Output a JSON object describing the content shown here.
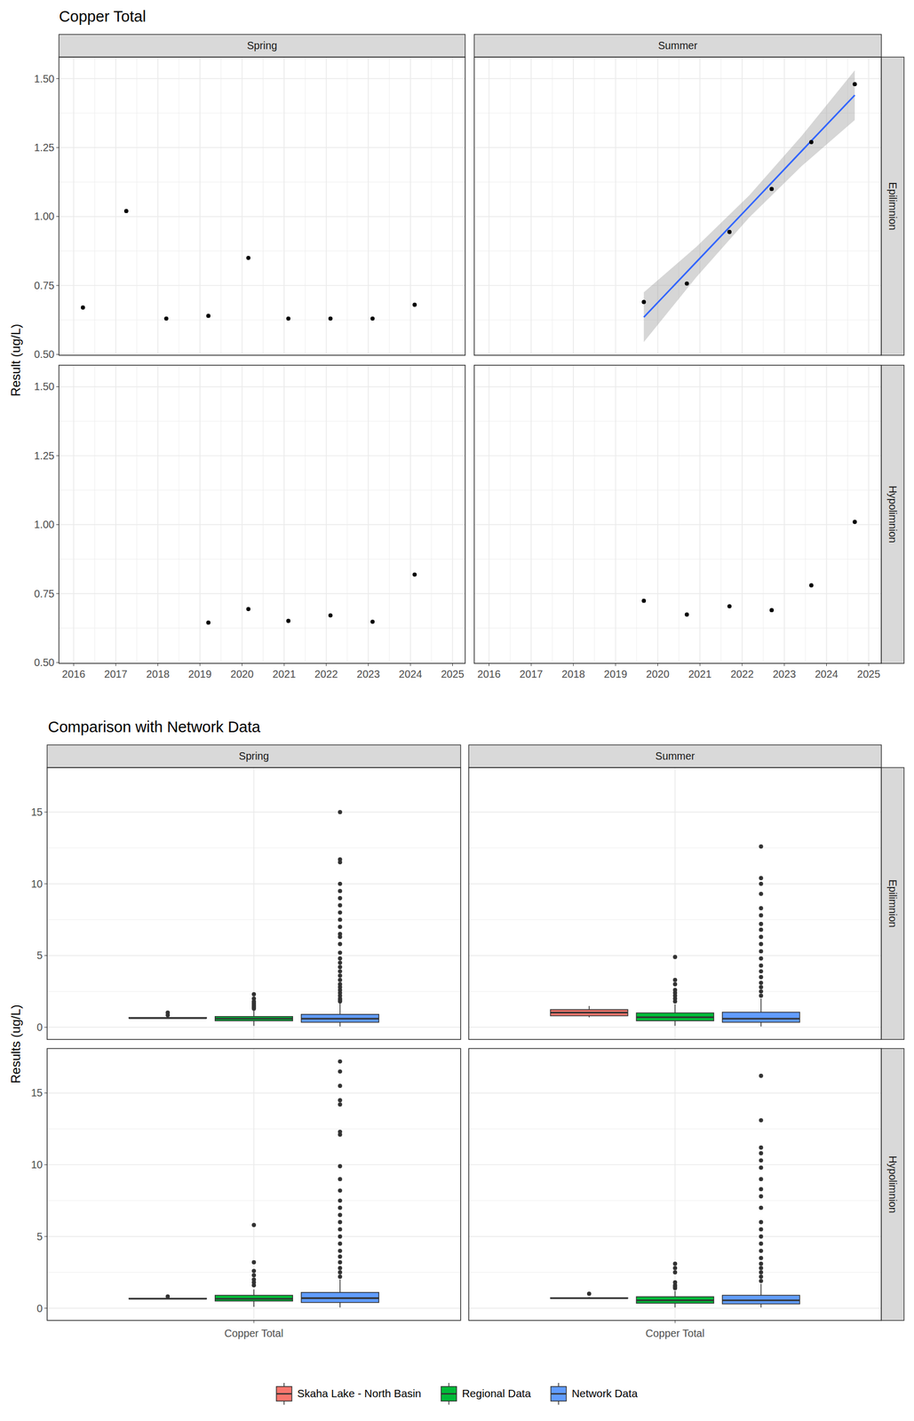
{
  "chart_data": [
    {
      "type": "scatter",
      "title": "Copper Total",
      "y_label": "Result (ug/L)",
      "color": "#000000",
      "grid": true,
      "columns": [
        "Spring",
        "Summer"
      ],
      "rows": [
        "Epilimnion",
        "Hypolimnion"
      ],
      "xlim": [
        2015.65,
        2025.3
      ],
      "xticks": [
        2016,
        2017,
        2018,
        2019,
        2020,
        2021,
        2022,
        2023,
        2024,
        2025
      ],
      "ylim": [
        0.497,
        1.578
      ],
      "yticks": [
        {
          "value": 0.5,
          "label": "0.50"
        },
        0.75,
        {
          "value": 1.0,
          "label": "1.00"
        },
        1.25,
        {
          "value": 1.5,
          "label": "1.50"
        }
      ],
      "panels": [
        {
          "column": 0,
          "row": 0,
          "x": [
            2016.22,
            2017.25,
            2018.2,
            2019.2,
            2020.15,
            2021.1,
            2022.1,
            2023.1,
            2024.1
          ],
          "values": [
            0.67,
            1.02,
            0.63,
            0.64,
            0.85,
            0.63,
            0.63,
            0.63,
            0.68
          ]
        },
        {
          "column": 1,
          "row": 0,
          "x": [
            2019.67,
            2020.69,
            2021.7,
            2022.7,
            2023.64,
            2024.67
          ],
          "values": [
            0.69,
            0.757,
            0.944,
            1.1,
            1.27,
            1.48
          ],
          "fit": {
            "color": "#3366FF",
            "x": [
              2019.67,
              2020.92,
              2022.17,
              2023.42,
              2024.67
            ],
            "values": [
              0.635,
              0.836,
              1.037,
              1.239,
              1.44
            ],
            "lower": [
              0.545,
              0.781,
              0.997,
              1.184,
              1.35
            ],
            "upper": [
              0.725,
              0.891,
              1.077,
              1.294,
              1.53
            ]
          }
        },
        {
          "column": 0,
          "row": 1,
          "x": [
            2019.2,
            2020.15,
            2021.1,
            2022.1,
            2023.1,
            2024.1
          ],
          "values": [
            0.645,
            0.694,
            0.651,
            0.671,
            0.648,
            0.819
          ]
        },
        {
          "column": 1,
          "row": 1,
          "x": [
            2019.67,
            2020.69,
            2021.7,
            2022.7,
            2023.64,
            2024.67
          ],
          "values": [
            0.724,
            0.674,
            0.704,
            0.69,
            0.78,
            1.01
          ]
        }
      ]
    },
    {
      "type": "box",
      "title": "Comparison with Network Data",
      "y_label": "Results (ug/L)",
      "grid": true,
      "legend": "bottom",
      "columns": [
        "Spring",
        "Summer"
      ],
      "rows": [
        "Epilimnion",
        "Hypolimnion"
      ],
      "categories": [
        "Copper Total"
      ],
      "ylim": [
        -0.85,
        18.1
      ],
      "yticks": [
        0,
        5,
        10,
        15
      ],
      "series": [
        {
          "name": "Skaha Lake - North Basin",
          "color": "#F8766D"
        },
        {
          "name": "Regional Data",
          "color": "#00BA38"
        },
        {
          "name": "Network Data",
          "color": "#619CFF"
        }
      ],
      "panels": [
        {
          "column": 0,
          "row": 0,
          "boxes": [
            {
              "whisker_low": 0.63,
              "q1": 0.63,
              "median": 0.64,
              "q3": 0.68,
              "whisker_high": 0.68,
              "outliers": [
                0.85,
                1.02
              ]
            },
            {
              "whisker_low": 0.1,
              "q1": 0.45,
              "median": 0.6,
              "q3": 0.75,
              "whisker_high": 1.15,
              "outliers": [
                1.3,
                1.4,
                1.5,
                1.6,
                1.7,
                1.8,
                2.0,
                2.3
              ]
            },
            {
              "whisker_low": 0.05,
              "q1": 0.35,
              "median": 0.6,
              "q3": 0.9,
              "whisker_high": 1.7,
              "outliers": [
                1.8,
                1.9,
                2.0,
                2.2,
                2.4,
                2.6,
                2.8,
                3.0,
                3.3,
                3.6,
                3.9,
                4.2,
                4.5,
                4.8,
                5.2,
                5.8,
                6.3,
                6.5,
                7.0,
                7.5,
                8.0,
                8.5,
                9.0,
                9.5,
                10.0,
                11.5,
                11.7,
                15.0
              ]
            }
          ]
        },
        {
          "column": 1,
          "row": 0,
          "boxes": [
            {
              "whisker_low": 0.69,
              "q1": 0.8,
              "median": 1.02,
              "q3": 1.23,
              "whisker_high": 1.48,
              "outliers": []
            },
            {
              "whisker_low": 0.1,
              "q1": 0.45,
              "median": 0.7,
              "q3": 1.0,
              "whisker_high": 1.6,
              "outliers": [
                1.8,
                2.0,
                2.2,
                2.4,
                2.6,
                3.0,
                3.3,
                4.9
              ]
            },
            {
              "whisker_low": 0.05,
              "q1": 0.35,
              "median": 0.6,
              "q3": 1.05,
              "whisker_high": 2.0,
              "outliers": [
                2.2,
                2.5,
                2.8,
                3.1,
                3.5,
                3.9,
                4.3,
                4.8,
                5.3,
                5.8,
                6.3,
                6.8,
                7.2,
                7.8,
                8.3,
                9.3,
                10.0,
                10.4,
                12.6
              ]
            }
          ]
        },
        {
          "column": 0,
          "row": 1,
          "boxes": [
            {
              "whisker_low": 0.645,
              "q1": 0.648,
              "median": 0.66,
              "q3": 0.69,
              "whisker_high": 0.69,
              "outliers": [
                0.82
              ]
            },
            {
              "whisker_low": 0.1,
              "q1": 0.5,
              "median": 0.65,
              "q3": 0.9,
              "whisker_high": 1.3,
              "outliers": [
                1.6,
                1.8,
                2.0,
                2.3,
                2.6,
                3.2,
                5.8
              ]
            },
            {
              "whisker_low": 0.05,
              "q1": 0.4,
              "median": 0.7,
              "q3": 1.1,
              "whisker_high": 2.0,
              "outliers": [
                2.2,
                2.5,
                2.8,
                3.2,
                3.6,
                4.0,
                4.5,
                5.0,
                5.5,
                6.0,
                6.5,
                7.0,
                7.5,
                8.2,
                9.0,
                9.9,
                12.1,
                12.3,
                14.2,
                14.5,
                15.5,
                16.5,
                17.2
              ]
            }
          ]
        },
        {
          "column": 1,
          "row": 1,
          "boxes": [
            {
              "whisker_low": 0.674,
              "q1": 0.69,
              "median": 0.7,
              "q3": 0.72,
              "whisker_high": 0.78,
              "outliers": [
                1.01
              ]
            },
            {
              "whisker_low": 0.05,
              "q1": 0.35,
              "median": 0.55,
              "q3": 0.8,
              "whisker_high": 1.2,
              "outliers": [
                1.4,
                1.5,
                1.6,
                1.8,
                2.5,
                2.8,
                3.1
              ]
            },
            {
              "whisker_low": 0.05,
              "q1": 0.3,
              "median": 0.55,
              "q3": 0.9,
              "whisker_high": 1.7,
              "outliers": [
                1.9,
                2.2,
                2.5,
                2.8,
                3.1,
                3.5,
                4.0,
                4.5,
                5.0,
                5.5,
                6.0,
                7.0,
                7.8,
                8.3,
                9.0,
                9.8,
                10.3,
                10.8,
                11.2,
                13.1,
                16.2
              ]
            }
          ]
        }
      ]
    }
  ]
}
